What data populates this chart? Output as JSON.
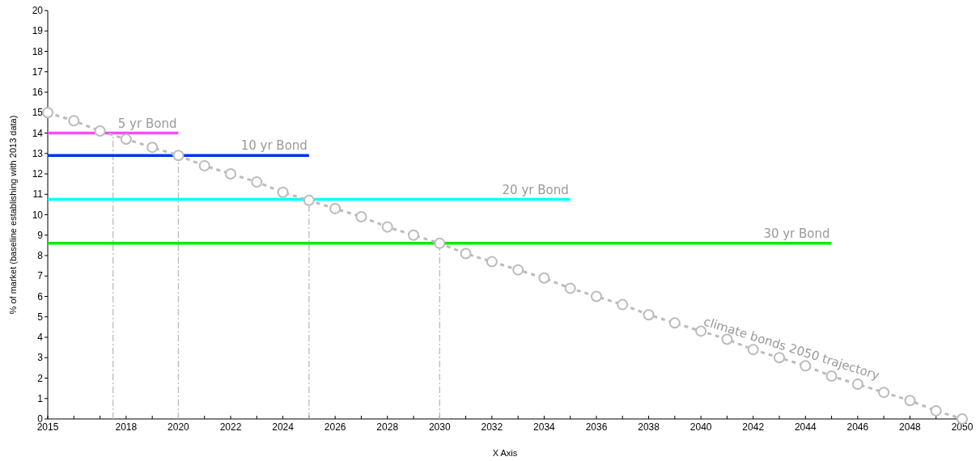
{
  "chart_data": {
    "type": "line",
    "xlabel": "X Axis",
    "ylabel": "% of market (baseline establishing with 2013 data)",
    "xlim": [
      2015,
      2050
    ],
    "xticks": [
      2015,
      {
        "value": 2016,
        "label": null
      },
      {
        "value": 2017,
        "label": null
      },
      2018,
      {
        "value": 2019,
        "label": null
      },
      2020,
      {
        "value": 2021,
        "label": null
      },
      2022,
      {
        "value": 2023,
        "label": null
      },
      2024,
      {
        "value": 2025,
        "label": null
      },
      2026,
      {
        "value": 2027,
        "label": null
      },
      2028,
      {
        "value": 2029,
        "label": null
      },
      2030,
      {
        "value": 2031,
        "label": null
      },
      2032,
      {
        "value": 2033,
        "label": null
      },
      2034,
      {
        "value": 2035,
        "label": null
      },
      2036,
      {
        "value": 2037,
        "label": null
      },
      2038,
      {
        "value": 2039,
        "label": null
      },
      2040,
      {
        "value": 2041,
        "label": null
      },
      2042,
      {
        "value": 2043,
        "label": null
      },
      2044,
      {
        "value": 2045,
        "label": null
      },
      2046,
      {
        "value": 2047,
        "label": null
      },
      2048,
      {
        "value": 2049,
        "label": null
      },
      2050
    ],
    "ylim": [
      0,
      20
    ],
    "yticks": [
      0,
      1,
      2,
      3,
      4,
      5,
      6,
      7,
      8,
      9,
      10,
      11,
      12,
      13,
      14,
      15,
      16,
      17,
      18,
      19,
      20
    ],
    "grid": false,
    "series": [
      {
        "color": "#bbbbbb",
        "line_style": "dashed",
        "x": [
          2017.5,
          2017.5
        ],
        "values": [
          0,
          14
        ]
      },
      {
        "color": "#bbbbbb",
        "line_style": "dashed",
        "x": [
          2020,
          2020
        ],
        "values": [
          0,
          12.9
        ]
      },
      {
        "color": "#bbbbbb",
        "line_style": "dashed",
        "x": [
          2025,
          2025
        ],
        "values": [
          0,
          10.75
        ]
      },
      {
        "color": "#bbbbbb",
        "line_style": "dashed",
        "x": [
          2030,
          2030
        ],
        "values": [
          0,
          8.6
        ]
      },
      {
        "name": "5 yr Bond",
        "color": "#f24df2",
        "line_style": "solid",
        "x": [
          2015,
          2020
        ],
        "values": [
          14,
          14
        ]
      },
      {
        "name": "10 yr Bond",
        "color": "#0033ee",
        "line_style": "solid",
        "x": [
          2015,
          2025
        ],
        "values": [
          12.9,
          12.9
        ]
      },
      {
        "name": "20 yr Bond",
        "color": "#00ffff",
        "line_style": "solid",
        "x": [
          2015,
          2035
        ],
        "values": [
          10.75,
          10.75
        ]
      },
      {
        "name": "30 yr Bond",
        "color": "#00ee00",
        "line_style": "solid",
        "x": [
          2015,
          2045
        ],
        "values": [
          8.6,
          8.6
        ]
      },
      {
        "name": "climate bonds 2050 trajectory",
        "color": "#bbbbbb",
        "line_style": "dotted",
        "marker": "circle",
        "x": [
          2015,
          2016,
          2017,
          2018,
          2019,
          2020,
          2021,
          2022,
          2023,
          2024,
          2025,
          2026,
          2027,
          2028,
          2029,
          2030,
          2031,
          2032,
          2033,
          2034,
          2035,
          2036,
          2037,
          2038,
          2039,
          2040,
          2041,
          2042,
          2043,
          2044,
          2045,
          2046,
          2047,
          2048,
          2049,
          2050
        ],
        "values": [
          15.0,
          14.6,
          14.1,
          13.7,
          13.3,
          12.9,
          12.4,
          12.0,
          11.6,
          11.1,
          10.7,
          10.3,
          9.9,
          9.4,
          9.0,
          8.6,
          8.1,
          7.7,
          7.3,
          6.9,
          6.4,
          6.0,
          5.6,
          5.1,
          4.7,
          4.3,
          3.9,
          3.4,
          3.0,
          2.6,
          2.1,
          1.7,
          1.3,
          0.9,
          0.4,
          0.0
        ]
      }
    ]
  }
}
